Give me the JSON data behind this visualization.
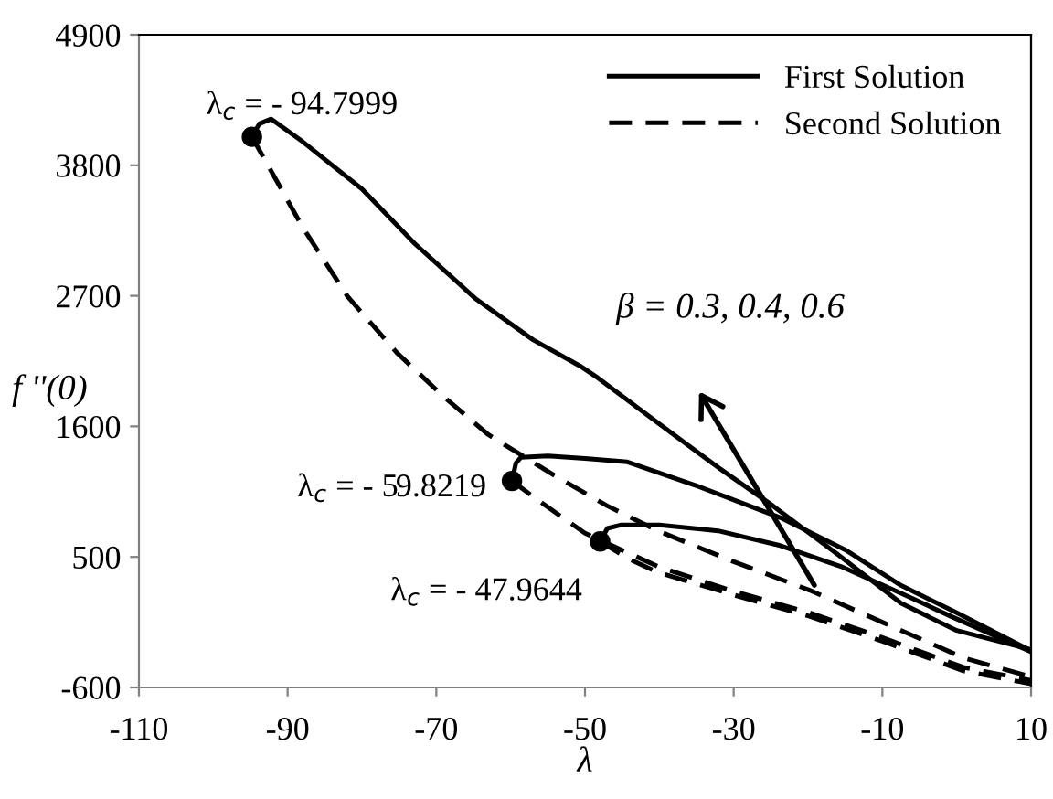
{
  "chart_data": {
    "type": "line",
    "xlabel": "λ",
    "ylabel": "f ''(0)",
    "xlim": [
      -110,
      10
    ],
    "ylim": [
      -600,
      4900
    ],
    "xticks": [
      -110,
      -90,
      -70,
      -50,
      -30,
      -10,
      10
    ],
    "yticks": [
      -600,
      500,
      1600,
      2700,
      3800,
      4900
    ],
    "grid": false,
    "legend": "top right",
    "marker": "none",
    "series": [
      {
        "name": "First Solution",
        "color": "#000000",
        "line_style": "solid",
        "x": [
          -94.8,
          -93.8,
          -92.2,
          -88,
          -80,
          -72.9,
          -64.8,
          -57,
          -50.7,
          -48.3,
          -40,
          -32,
          -24.7,
          -16,
          -7.5,
          0,
          10
        ],
        "values": [
          4040,
          4150,
          4190,
          4000,
          3600,
          3140,
          2680,
          2330,
          2110,
          2010,
          1620,
          1250,
          930,
          520,
          110,
          -120,
          -280
        ]
      },
      {
        "color": "#000000",
        "line_style": "solid",
        "x": [
          -59.82,
          -59.3,
          -58.6,
          -55,
          -50,
          -44.3,
          -35,
          -23.7,
          -15,
          -7.5,
          0,
          10
        ],
        "values": [
          1140,
          1290,
          1340,
          1350,
          1330,
          1300,
          1100,
          830,
          560,
          260,
          30,
          -290
        ]
      },
      {
        "color": "#000000",
        "line_style": "solid",
        "x": [
          -47.96,
          -47,
          -45.1,
          -40,
          -32.1,
          -24,
          -15.6,
          -7,
          -0.8,
          10
        ],
        "values": [
          630,
          740,
          770,
          770,
          720,
          600,
          420,
          180,
          0,
          -300
        ]
      },
      {
        "name": "Second Solution",
        "color": "#000000",
        "line_style": "dashed",
        "x": [
          -94.8,
          -88,
          -82,
          -75.3,
          -69,
          -63,
          -54.2,
          -47,
          -40.2,
          -30,
          -19.8,
          -10,
          0.9,
          10
        ],
        "values": [
          4040,
          3280,
          2700,
          2220,
          1850,
          1530,
          1190,
          930,
          720,
          460,
          220,
          -50,
          -350,
          -510
        ]
      },
      {
        "color": "#000000",
        "line_style": "dashed",
        "x": [
          -59.82,
          -56.6,
          -50,
          -40.2,
          -30,
          -19.8,
          -10,
          0.9,
          10
        ],
        "values": [
          1140,
          990,
          700,
          420,
          210,
          30,
          -180,
          -430,
          -540
        ]
      },
      {
        "color": "#000000",
        "line_style": "dashed",
        "x": [
          -47.96,
          -44,
          -40.2,
          -30,
          -19.8,
          -10,
          0.9,
          10
        ],
        "values": [
          630,
          480,
          370,
          180,
          0,
          -210,
          -460,
          -570
        ]
      },
      {
        "type": "scatter",
        "color": "#000000",
        "marker": "circle",
        "x": [
          -94.7999,
          -59.8219,
          -47.9644
        ],
        "values": [
          4040,
          1140,
          630
        ]
      }
    ],
    "annotations": [
      {
        "text": "λ$_{c}$ = - 94.7999",
        "x": -94.7999,
        "y": 4040
      },
      {
        "text": "λ$_{c}$ = - 59.8219",
        "x": -59.8219,
        "y": 1140
      },
      {
        "text": "λ$_{c}$ = - 47.9644",
        "x": -47.9644,
        "y": 630
      },
      "β = 0.3, 0.4, 0.6"
    ]
  }
}
